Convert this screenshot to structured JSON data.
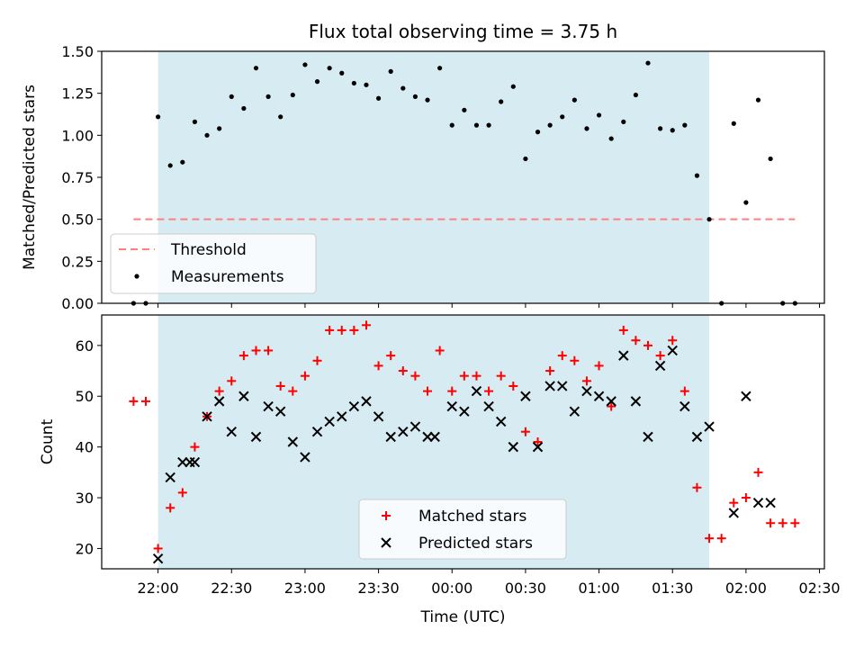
{
  "chart_data": [
    {
      "type": "scatter",
      "title": "Flux total observing time = 3.75 h",
      "ylabel": "Matched/Predicted stars",
      "xlabel": "",
      "ylim": [
        0,
        1.5
      ],
      "yticks": [
        "0.00",
        "0.25",
        "0.50",
        "0.75",
        "1.00",
        "1.25",
        "1.50"
      ],
      "grid": false,
      "legend_position": "lower-left",
      "shaded_interval_minutes": [
        0,
        225
      ],
      "colors": {
        "shade": "#add8e6",
        "threshold": "#ff7f7f",
        "measurements": "#000000"
      },
      "series": [
        {
          "name": "Threshold",
          "kind": "line",
          "style": "dashed",
          "x": [
            -10,
            260
          ],
          "y": [
            0.5,
            0.5
          ]
        },
        {
          "name": "Measurements",
          "kind": "points",
          "x": [
            -10,
            -5,
            0,
            5,
            10,
            15,
            20,
            25,
            30,
            35,
            40,
            45,
            50,
            55,
            60,
            65,
            70,
            75,
            80,
            85,
            90,
            95,
            100,
            105,
            110,
            115,
            120,
            125,
            130,
            135,
            140,
            145,
            150,
            155,
            160,
            165,
            170,
            175,
            180,
            185,
            190,
            195,
            200,
            205,
            210,
            215,
            220,
            225,
            230,
            235,
            240,
            245,
            250,
            255,
            260
          ],
          "y": [
            0,
            0,
            1.11,
            0.82,
            0.84,
            1.08,
            1.0,
            1.04,
            1.23,
            1.16,
            1.4,
            1.23,
            1.11,
            1.24,
            1.42,
            1.32,
            1.4,
            1.37,
            1.31,
            1.3,
            1.22,
            1.38,
            1.28,
            1.23,
            1.21,
            1.4,
            1.06,
            1.15,
            1.06,
            1.06,
            1.2,
            1.29,
            0.86,
            1.02,
            1.06,
            1.11,
            1.21,
            1.04,
            1.12,
            0.98,
            1.08,
            1.24,
            1.43,
            1.04,
            1.03,
            1.06,
            0.76,
            0.5,
            0,
            1.07,
            0.6,
            1.21,
            0.86,
            0,
            0
          ]
        }
      ]
    },
    {
      "type": "scatter",
      "title": "",
      "xlabel": "Time (UTC)",
      "ylabel": "Count",
      "yrange": [
        16,
        66
      ],
      "yticks": [
        "20",
        "30",
        "40",
        "50",
        "60"
      ],
      "xticks": [
        "22:00",
        "22:30",
        "23:00",
        "23:30",
        "00:00",
        "00:30",
        "01:00",
        "01:30",
        "02:00",
        "02:30"
      ],
      "x_range_minutes": [
        -23,
        272
      ],
      "grid": false,
      "legend_position": "lower-center",
      "shaded_interval_minutes": [
        0,
        225
      ],
      "colors": {
        "shade": "#add8e6",
        "matched": "#ff0000",
        "predicted": "#000000"
      },
      "series": [
        {
          "name": "Matched stars",
          "marker": "plus",
          "x": [
            -10,
            -5,
            0,
            5,
            10,
            15,
            20,
            25,
            30,
            35,
            40,
            45,
            50,
            55,
            60,
            65,
            70,
            75,
            80,
            85,
            90,
            95,
            100,
            105,
            110,
            115,
            120,
            125,
            130,
            135,
            140,
            145,
            150,
            155,
            160,
            165,
            170,
            175,
            180,
            185,
            190,
            195,
            200,
            205,
            210,
            215,
            220,
            225,
            230,
            235,
            240,
            245,
            250,
            255,
            260
          ],
          "y": [
            49,
            49,
            20,
            28,
            31,
            40,
            46,
            51,
            53,
            58,
            59,
            59,
            52,
            51,
            54,
            57,
            63,
            63,
            63,
            64,
            56,
            58,
            55,
            54,
            51,
            59,
            51,
            54,
            54,
            51,
            54,
            52,
            43,
            41,
            55,
            58,
            57,
            53,
            56,
            48,
            63,
            61,
            60,
            58,
            61,
            51,
            32,
            22,
            22,
            29,
            30,
            35,
            25,
            25,
            25
          ]
        },
        {
          "name": "Predicted stars",
          "marker": "x",
          "x": [
            0,
            5,
            10,
            13,
            15,
            20,
            25,
            30,
            35,
            40,
            45,
            50,
            55,
            60,
            65,
            70,
            75,
            80,
            85,
            90,
            95,
            100,
            105,
            110,
            113,
            120,
            125,
            130,
            135,
            140,
            145,
            150,
            155,
            160,
            165,
            170,
            175,
            180,
            185,
            190,
            195,
            200,
            205,
            210,
            215,
            220,
            225,
            235,
            240,
            245,
            250
          ],
          "y": [
            18,
            34,
            37,
            37,
            37,
            46,
            49,
            43,
            50,
            42,
            48,
            47,
            41,
            38,
            43,
            45,
            46,
            48,
            49,
            46,
            42,
            43,
            44,
            42,
            42,
            48,
            47,
            51,
            48,
            45,
            40,
            50,
            40,
            52,
            52,
            47,
            51,
            50,
            49,
            58,
            49,
            42,
            56,
            59,
            48,
            42,
            44,
            27,
            50,
            29,
            29
          ]
        }
      ]
    }
  ]
}
